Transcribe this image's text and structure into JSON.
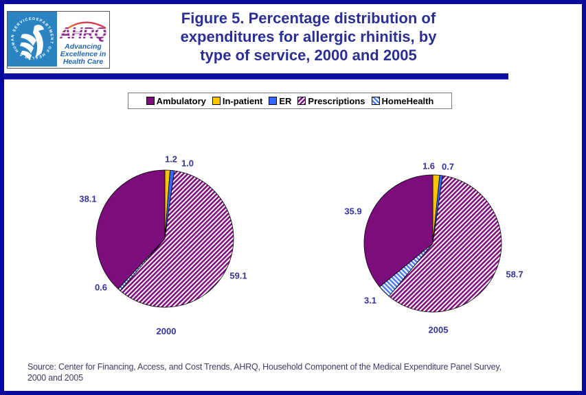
{
  "header": {
    "title_lines": [
      "Figure 5. Percentage distribution of",
      "expenditures for allergic rhinitis, by",
      "type of service, 2000 and 2005"
    ],
    "hhs_logo": {
      "circle_text": "DEPARTMENT OF HEALTH & HUMAN SERVICES • USA •"
    },
    "ahrq_logo": {
      "name": "AHRQ",
      "tagline_lines": [
        "Advancing",
        "Excellence in",
        "Health Care"
      ]
    }
  },
  "legend": {
    "items": [
      {
        "label": "Ambulatory",
        "swatch": "solid-purple"
      },
      {
        "label": "In-patient",
        "swatch": "solid-yellow"
      },
      {
        "label": "ER",
        "swatch": "solid-blue"
      },
      {
        "label": "Prescriptions",
        "swatch": "purple-diagonal-hatch"
      },
      {
        "label": "HomeHealth",
        "swatch": "blue-diagonal-hatch"
      }
    ]
  },
  "chart_data": [
    {
      "type": "pie",
      "title": "2000",
      "labels": [
        "Ambulatory",
        "In-patient",
        "ER",
        "Prescriptions",
        "HomeHealth"
      ],
      "values": [
        38.1,
        1.2,
        1.0,
        59.1,
        0.6
      ],
      "value_labels": [
        "38.1",
        "1.2",
        "1.0",
        "59.1",
        "0.6"
      ],
      "start_angle_deg": 0,
      "draw_order": [
        "In-patient",
        "ER",
        "Prescriptions",
        "HomeHealth",
        "Ambulatory"
      ],
      "legend_position": "top"
    },
    {
      "type": "pie",
      "title": "2005",
      "labels": [
        "Ambulatory",
        "In-patient",
        "ER",
        "Prescriptions",
        "HomeHealth"
      ],
      "values": [
        35.9,
        1.6,
        0.7,
        58.7,
        3.1
      ],
      "value_labels": [
        "35.9",
        "1.6",
        "0.7",
        "58.7",
        "3.1"
      ],
      "start_angle_deg": 0,
      "draw_order": [
        "In-patient",
        "ER",
        "Prescriptions",
        "HomeHealth",
        "Ambulatory"
      ],
      "legend_position": "top"
    }
  ],
  "footer": {
    "source_lines": [
      "Source: Center for Financing, Access, and Cost Trends, AHRQ, Household Component of the Medical Expenditure Panel Survey,",
      "2000 and 2005"
    ]
  },
  "colors": {
    "ambulatory": "#7d0c7d",
    "in_patient": "#ffc400",
    "er": "#3366ff",
    "prescriptions_stripe": "#7d0c7d",
    "homehealth_stripe": "#4a7cf0",
    "title_navy": "#2b2e94",
    "label_navy": "#333399",
    "frame_navy": "#0a0a99"
  }
}
